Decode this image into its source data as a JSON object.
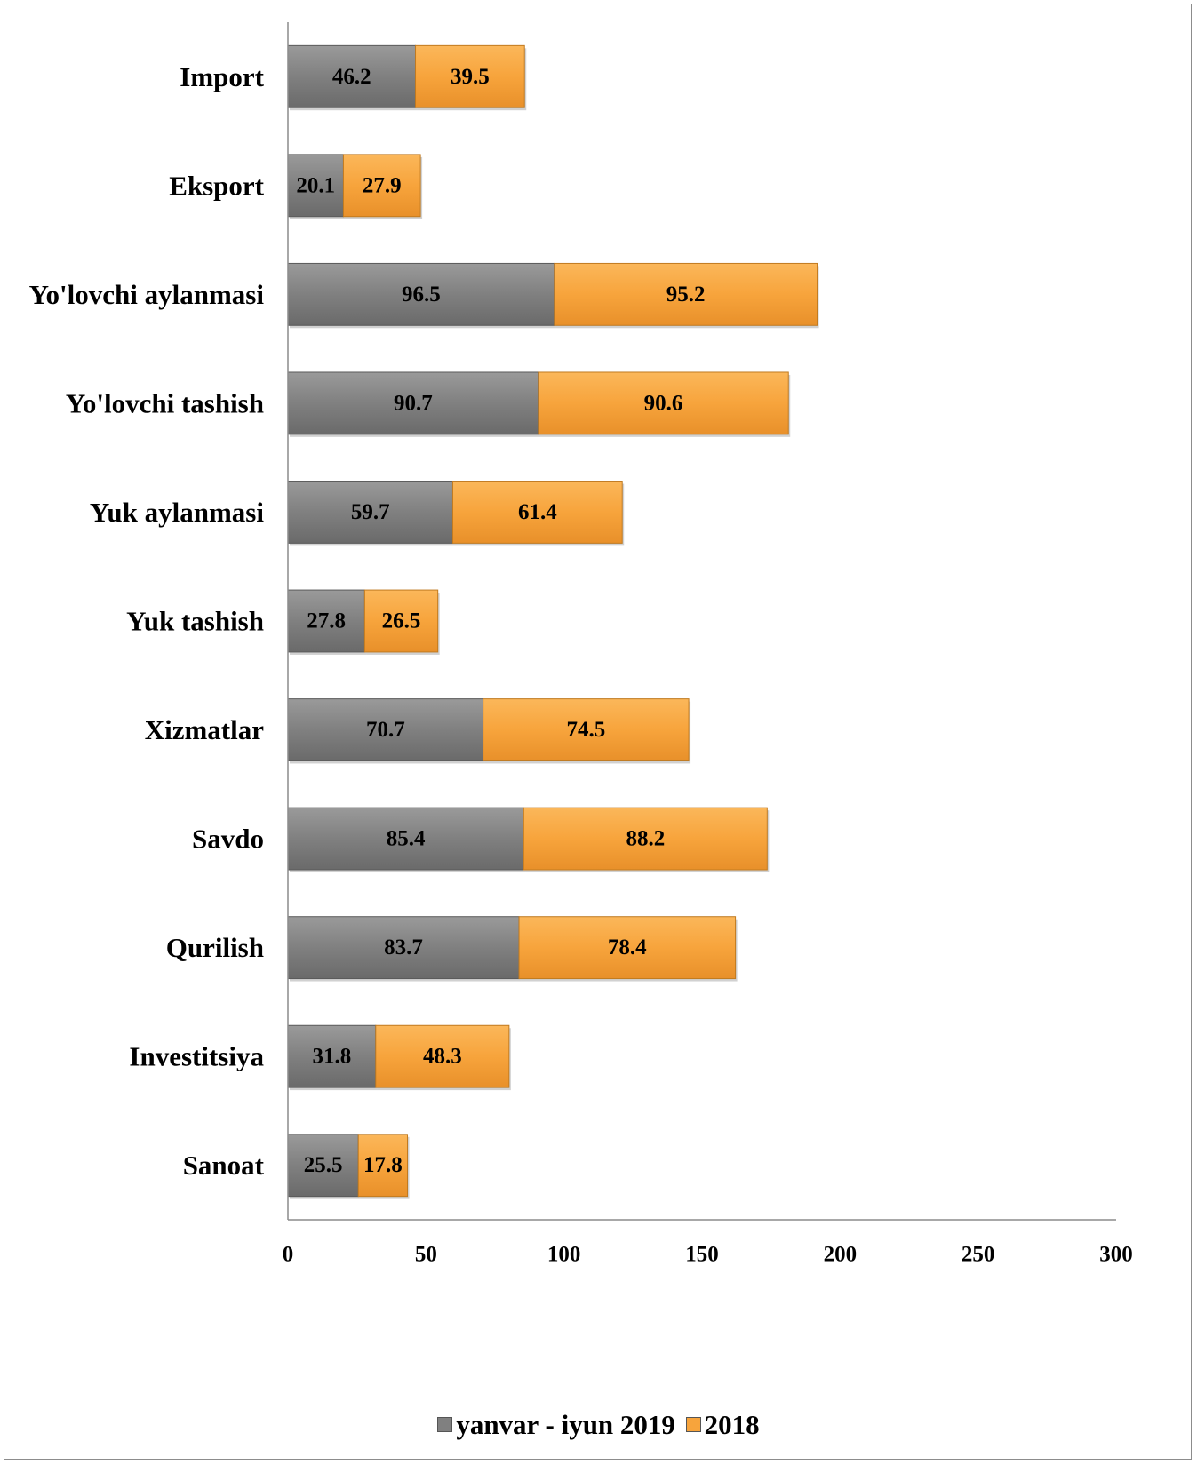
{
  "chart_data": {
    "type": "bar",
    "orientation": "horizontal",
    "stacked": true,
    "categories": [
      "Import",
      "Eksport",
      "Yo'lovchi aylanmasi",
      "Yo'lovchi tashish",
      "Yuk aylanmasi",
      "Yuk tashish",
      "Xizmatlar",
      "Savdo",
      "Qurilish",
      "Investitsiya",
      "Sanoat"
    ],
    "series": [
      {
        "name": "yanvar - iyun 2019",
        "color": "#808080",
        "values": [
          46.2,
          20.1,
          96.5,
          90.7,
          59.7,
          27.8,
          70.7,
          85.4,
          83.7,
          31.8,
          25.5
        ],
        "labels": [
          "46.2",
          "20.1",
          "96.5",
          "90.7",
          "59.7",
          "27.8",
          "70.7",
          "85.4",
          "83.7",
          "31.8",
          "25.5"
        ]
      },
      {
        "name": "2018",
        "color": "#F7A43C",
        "values": [
          39.5,
          27.9,
          95.2,
          90.6,
          61.4,
          26.5,
          74.5,
          88.2,
          78.4,
          48.3,
          17.8
        ],
        "labels": [
          "39.5",
          "27.9",
          "95.2",
          "90.6",
          "61.4",
          "26.5",
          "74.5",
          "88.2",
          "78.4",
          "48.3",
          "17.8"
        ]
      }
    ],
    "xlim": [
      0,
      300
    ],
    "xticks": [
      "0",
      "50",
      "100",
      "150",
      "200",
      "250",
      "300"
    ],
    "title": "",
    "xlabel": "",
    "ylabel": "",
    "grid": false,
    "legend_position": "bottom"
  }
}
